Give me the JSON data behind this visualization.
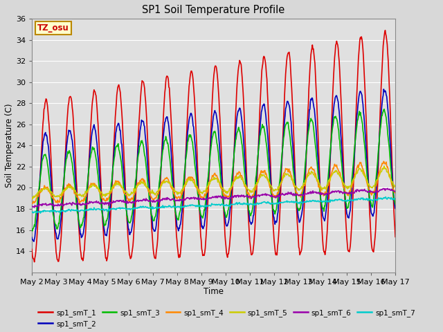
{
  "title": "SP1 Soil Temperature Profile",
  "xlabel": "Time",
  "ylabel": "Soil Temperature (C)",
  "ylim": [
    12,
    36
  ],
  "yticks": [
    14,
    16,
    18,
    20,
    22,
    24,
    26,
    28,
    30,
    32,
    34,
    36
  ],
  "xtick_labels": [
    "May 2",
    "May 3",
    "May 4",
    "May 5",
    "May 6",
    "May 7",
    "May 8",
    "May 9",
    "May 10",
    "May 11",
    "May 12",
    "May 13",
    "May 14",
    "May 15",
    "May 16",
    "May 17"
  ],
  "annotation_text": "TZ_osu",
  "annotation_color": "#cc0000",
  "annotation_bg": "#ffffcc",
  "annotation_border": "#bb8800",
  "series_colors": [
    "#dd0000",
    "#0000bb",
    "#00bb00",
    "#ff8800",
    "#cccc00",
    "#9900aa",
    "#00cccc"
  ],
  "series_labels": [
    "sp1_smT_1",
    "sp1_smT_2",
    "sp1_smT_3",
    "sp1_smT_4",
    "sp1_smT_5",
    "sp1_smT_6",
    "sp1_smT_7"
  ],
  "bg_color": "#e0e0e0",
  "grid_color": "#ffffff",
  "line_width": 1.2,
  "n_days": 15,
  "pts_per_day": 48
}
